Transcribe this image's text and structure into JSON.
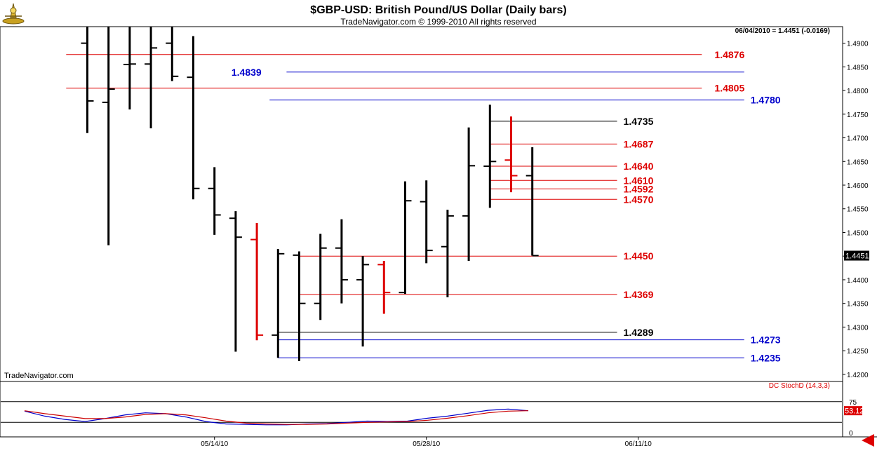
{
  "chart_data": {
    "type": "ohlc",
    "title": "$GBP-USD:  British Pound/US Dollar  (Daily bars)",
    "subtitle": "TradeNavigator.com © 1999-2010 All rights reserved",
    "info_label": "06/04/2010 = 1.4451 (-0.0169)",
    "watermark": "TradeNavigator.com",
    "y_axis": {
      "ylim": [
        1.4185,
        1.4935
      ],
      "ticks": [
        "1.4900",
        "1.4850",
        "1.4800",
        "1.4750",
        "1.4700",
        "1.4650",
        "1.4600",
        "1.4550",
        "1.4500",
        "1.4450",
        "1.4400",
        "1.4350",
        "1.4300",
        "1.4250",
        "1.4200"
      ],
      "last_price_label": "1.4451"
    },
    "x_axis": {
      "labels": [
        {
          "text": "05/14/10",
          "index": 6
        },
        {
          "text": "05/28/10",
          "index": 16
        },
        {
          "text": "06/11/10",
          "index": 26
        }
      ]
    },
    "bars": [
      {
        "index": 0,
        "open": 1.49,
        "high": 1.4935,
        "low": 1.471,
        "close": 1.4778,
        "color": "#000000"
      },
      {
        "index": 1,
        "open": 1.4775,
        "high": 1.4935,
        "low": 1.4473,
        "close": 1.4803,
        "color": "#000000"
      },
      {
        "index": 2,
        "open": 1.4855,
        "high": 1.4935,
        "low": 1.476,
        "close": 1.4856,
        "color": "#000000"
      },
      {
        "index": 3,
        "open": 1.4856,
        "high": 1.4935,
        "low": 1.472,
        "close": 1.489,
        "color": "#000000"
      },
      {
        "index": 4,
        "open": 1.49,
        "high": 1.4935,
        "low": 1.482,
        "close": 1.483,
        "color": "#000000"
      },
      {
        "index": 5,
        "open": 1.4828,
        "high": 1.4915,
        "low": 1.457,
        "close": 1.4593,
        "color": "#000000"
      },
      {
        "index": 6,
        "open": 1.4593,
        "high": 1.4638,
        "low": 1.4495,
        "close": 1.4537,
        "color": "#000000"
      },
      {
        "index": 7,
        "open": 1.453,
        "high": 1.4545,
        "low": 1.4248,
        "close": 1.449,
        "color": "#000000"
      },
      {
        "index": 8,
        "open": 1.4485,
        "high": 1.452,
        "low": 1.4272,
        "close": 1.4283,
        "color": "#dd0000"
      },
      {
        "index": 9,
        "open": 1.4283,
        "high": 1.4465,
        "low": 1.4235,
        "close": 1.4455,
        "color": "#000000"
      },
      {
        "index": 10,
        "open": 1.4452,
        "high": 1.446,
        "low": 1.4228,
        "close": 1.435,
        "color": "#000000"
      },
      {
        "index": 11,
        "open": 1.435,
        "high": 1.4497,
        "low": 1.4315,
        "close": 1.4467,
        "color": "#000000"
      },
      {
        "index": 12,
        "open": 1.4467,
        "high": 1.4528,
        "low": 1.435,
        "close": 1.44,
        "color": "#000000"
      },
      {
        "index": 13,
        "open": 1.44,
        "high": 1.445,
        "low": 1.4259,
        "close": 1.4432,
        "color": "#000000"
      },
      {
        "index": 14,
        "open": 1.4432,
        "high": 1.444,
        "low": 1.4328,
        "close": 1.4373,
        "color": "#dd0000"
      },
      {
        "index": 15,
        "open": 1.4373,
        "high": 1.4608,
        "low": 1.437,
        "close": 1.4567,
        "color": "#000000"
      },
      {
        "index": 16,
        "open": 1.4565,
        "high": 1.461,
        "low": 1.4435,
        "close": 1.4462,
        "color": "#000000"
      },
      {
        "index": 17,
        "open": 1.447,
        "high": 1.4548,
        "low": 1.4363,
        "close": 1.4535,
        "color": "#000000"
      },
      {
        "index": 18,
        "open": 1.4535,
        "high": 1.4722,
        "low": 1.444,
        "close": 1.4641,
        "color": "#000000"
      },
      {
        "index": 19,
        "open": 1.464,
        "high": 1.477,
        "low": 1.4552,
        "close": 1.465,
        "color": "#000000"
      },
      {
        "index": 20,
        "open": 1.4653,
        "high": 1.4745,
        "low": 1.4585,
        "close": 1.462,
        "color": "#dd0000"
      },
      {
        "index": 21,
        "open": 1.462,
        "high": 1.468,
        "low": 1.4451,
        "close": 1.4451,
        "color": "#000000"
      }
    ],
    "levels": [
      {
        "value": 1.4876,
        "label": "1.4876",
        "color": "#dd0000",
        "line_start": -1,
        "line_end": 29,
        "label_index": 29.6
      },
      {
        "value": 1.4839,
        "label": "1.4839",
        "color": "#0000cc",
        "line_start": 9.4,
        "line_end": 31,
        "label_index": 6.8
      },
      {
        "value": 1.4805,
        "label": "1.4805",
        "color": "#dd0000",
        "line_start": -1,
        "line_end": 29,
        "label_index": 29.6
      },
      {
        "value": 1.478,
        "label": "1.4780",
        "color": "#0000cc",
        "line_start": 8.6,
        "line_end": 31,
        "label_index": 31.3
      },
      {
        "value": 1.4735,
        "label": "1.4735",
        "color": "#000000",
        "line_start": 19,
        "line_end": 25,
        "label_index": 25.3
      },
      {
        "value": 1.4687,
        "label": "1.4687",
        "color": "#dd0000",
        "line_start": 19,
        "line_end": 25,
        "label_index": 25.3
      },
      {
        "value": 1.464,
        "label": "1.4640",
        "color": "#dd0000",
        "line_start": 19,
        "line_end": 25,
        "label_index": 25.3
      },
      {
        "value": 1.461,
        "label": "1.4610",
        "color": "#dd0000",
        "line_start": 19,
        "line_end": 25,
        "label_index": 25.3
      },
      {
        "value": 1.4592,
        "label": "1.4592",
        "color": "#dd0000",
        "line_start": 19,
        "line_end": 25,
        "label_index": 25.3
      },
      {
        "value": 1.457,
        "label": "1.4570",
        "color": "#dd0000",
        "line_start": 19,
        "line_end": 25,
        "label_index": 25.3
      },
      {
        "value": 1.445,
        "label": "1.4450",
        "color": "#dd0000",
        "line_start": 10,
        "line_end": 25,
        "label_index": 25.3
      },
      {
        "value": 1.4369,
        "label": "1.4369",
        "color": "#dd0000",
        "line_start": 10,
        "line_end": 25,
        "label_index": 25.3
      },
      {
        "value": 1.4289,
        "label": "1.4289",
        "color": "#000000",
        "line_start": 9,
        "line_end": 25,
        "label_index": 25.3
      },
      {
        "value": 1.4273,
        "label": "1.4273",
        "color": "#0000cc",
        "line_start": 9,
        "line_end": 31,
        "label_index": 31.3
      },
      {
        "value": 1.4235,
        "label": "1.4235",
        "color": "#0000cc",
        "line_start": 9,
        "line_end": 31,
        "label_index": 31.3
      }
    ],
    "indicator": {
      "title": "DC StochD (14,3,3)",
      "ylim": [
        0,
        100
      ],
      "ticks": [
        "75",
        "0"
      ],
      "reference_lines": [
        75,
        25
      ],
      "last_value_label": "53.12",
      "series": [
        {
          "color": "#0000cc",
          "values": [
            52,
            40,
            32,
            27,
            34,
            43,
            48,
            46,
            38,
            27,
            21,
            20,
            19,
            19,
            21,
            22,
            25,
            28,
            27,
            28,
            35,
            40,
            47,
            54,
            57,
            53
          ]
        },
        {
          "color": "#cc0000",
          "values": [
            53,
            46,
            40,
            34,
            34,
            38,
            44,
            46,
            43,
            36,
            28,
            23,
            21,
            20,
            20,
            21,
            23,
            25,
            26,
            27,
            30,
            35,
            41,
            48,
            52,
            53
          ]
        }
      ]
    }
  }
}
